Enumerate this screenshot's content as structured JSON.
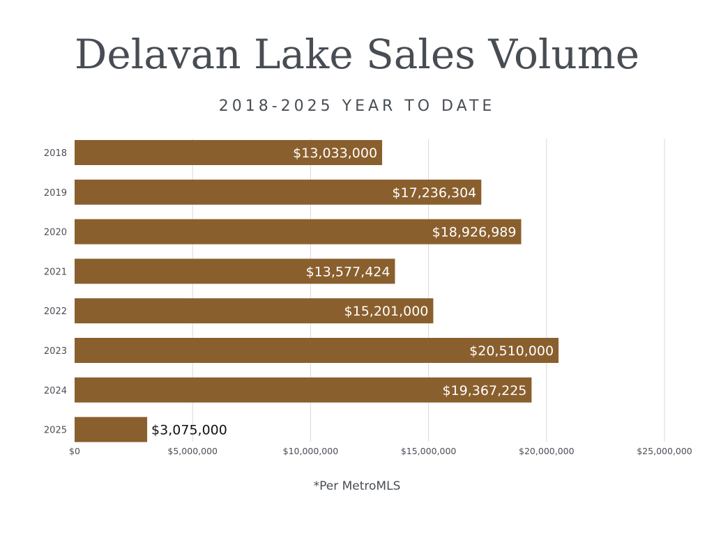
{
  "title": "Delavan Lake Sales Volume",
  "subtitle": "2018-2025 YEAR TO DATE",
  "footnote": "*Per MetroMLS",
  "colors": {
    "bar": "#8a5f2e",
    "grid": "#d9d9d9",
    "text": "#484d54",
    "label_inside": "#ffffff",
    "label_outside": "#111111"
  },
  "chart_data": {
    "type": "bar",
    "orientation": "horizontal",
    "categories": [
      "2018",
      "2019",
      "2020",
      "2021",
      "2022",
      "2023",
      "2024",
      "2025"
    ],
    "values": [
      13033000,
      17236304,
      18926989,
      13577424,
      15201000,
      20510000,
      19367225,
      3075000
    ],
    "data_labels": [
      "$13,033,000",
      "$17,236,304",
      "$18,926,989",
      "$13,577,424",
      "$15,201,000",
      "$20,510,000",
      "$19,367,225",
      "$3,075,000"
    ],
    "x_ticks": [
      0,
      5000000,
      10000000,
      15000000,
      20000000,
      25000000
    ],
    "x_tick_labels": [
      "$0",
      "$5,000,000",
      "$10,000,000",
      "$15,000,000",
      "$20,000,000",
      "$25,000,000"
    ],
    "xlim": [
      0,
      25000000
    ],
    "grid": true
  }
}
